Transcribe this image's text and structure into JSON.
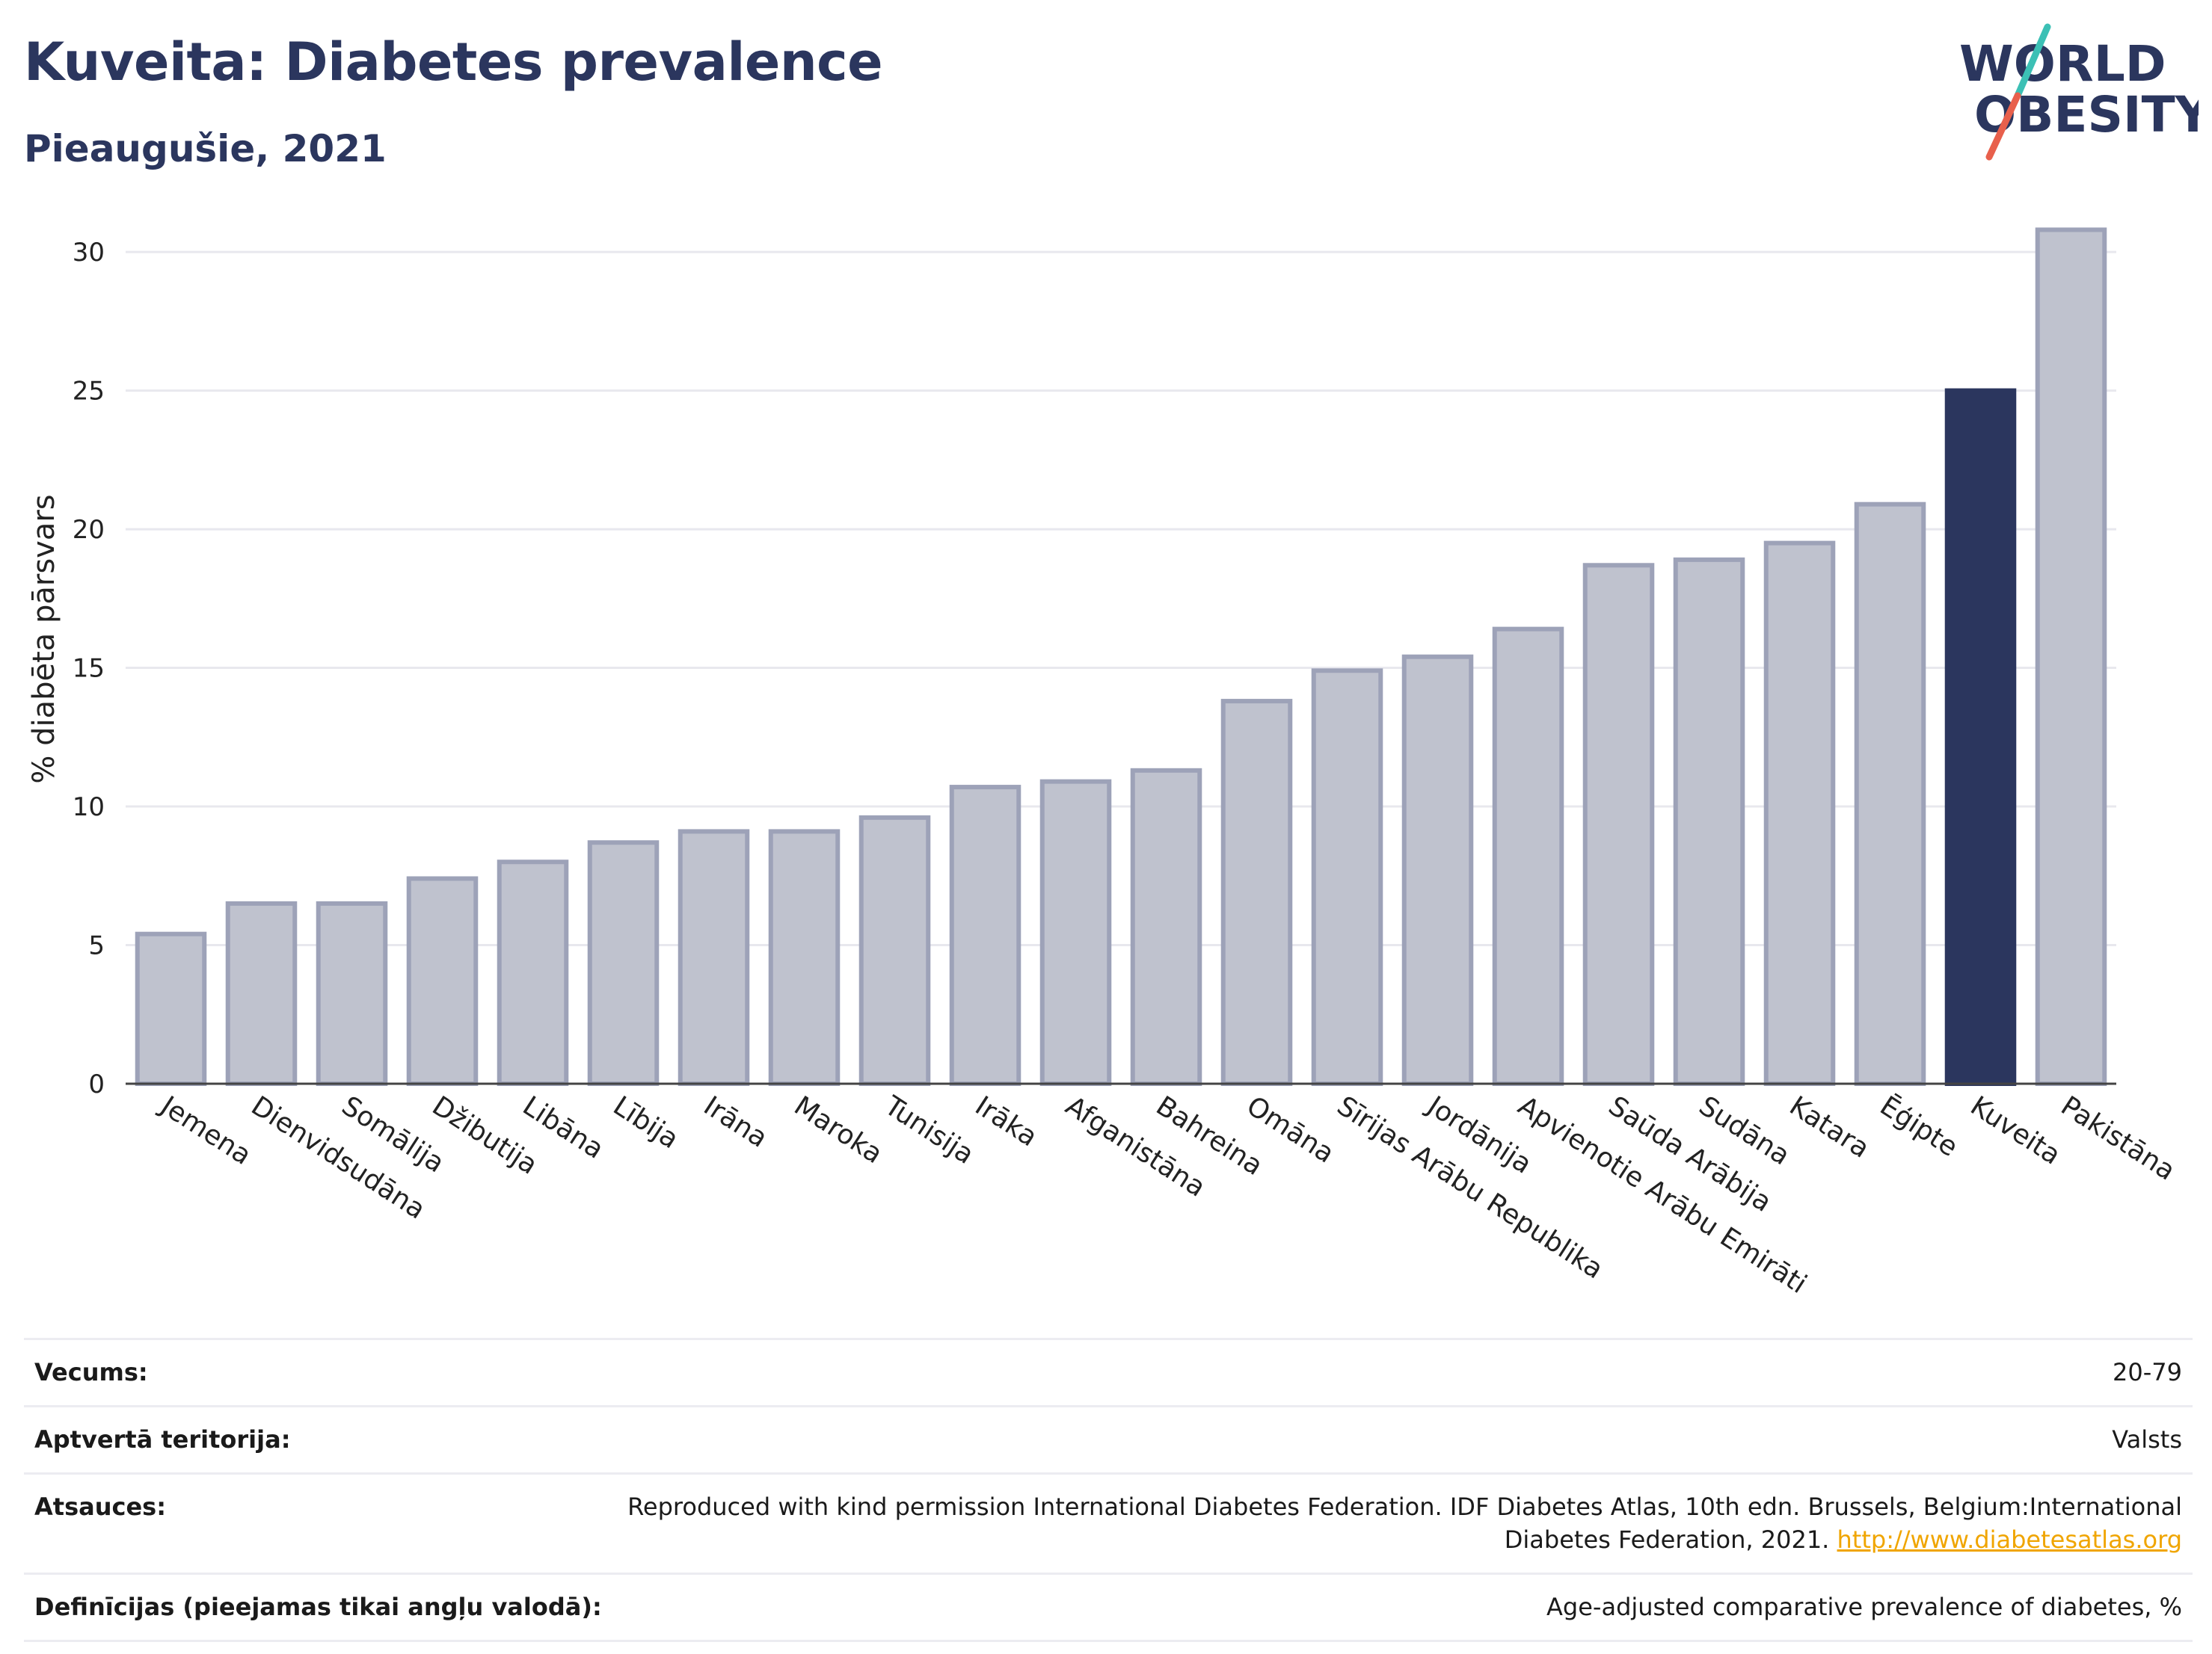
{
  "header": {
    "title": "Kuveita: Diabetes prevalence",
    "subtitle": "Pieaugušie, 2021"
  },
  "logo": {
    "line1": "WORLD",
    "line2": "OBESITY",
    "accent_colors": [
      "#3cc0b5",
      "#e8604c"
    ],
    "text_color": "#2b365e"
  },
  "chart_data": {
    "type": "bar",
    "ylabel": "% diabēta pārsvars",
    "ylim": [
      0,
      31
    ],
    "yticks": [
      0,
      5,
      10,
      15,
      20,
      25,
      30
    ],
    "grid": true,
    "highlight_category": "Kuveita",
    "colors": {
      "bar": "#bfc2ce",
      "bar_edge": "#9da2b8",
      "highlight": "#2b365e",
      "grid": "#e8e8ee",
      "axis": "#444444"
    },
    "categories": [
      "Jemena",
      "Dienvidsudāna",
      "Somālija",
      "Džibutija",
      "Libāna",
      "Lībija",
      "Irāna",
      "Maroka",
      "Tunisija",
      "Irāka",
      "Afganistāna",
      "Bahreina",
      "Omāna",
      "Sīrijas Arābu Republika",
      "Jordānija",
      "Apvienotie Arābu Emirāti",
      "Saūda Arābija",
      "Sudāna",
      "Katara",
      "Ēģipte",
      "Kuveita",
      "Pakistāna"
    ],
    "values": [
      5.4,
      6.5,
      6.5,
      7.4,
      8.0,
      8.7,
      9.1,
      9.1,
      9.6,
      10.7,
      10.9,
      11.3,
      13.8,
      14.9,
      15.4,
      16.4,
      18.7,
      18.9,
      19.5,
      20.9,
      25.0,
      30.8
    ]
  },
  "meta": {
    "rows": [
      {
        "key": "Vecums:",
        "value": "20-79"
      },
      {
        "key": "Aptvertā teritorija:",
        "value": "Valsts"
      },
      {
        "key": "Atsauces:",
        "value": "Reproduced with kind permission International Diabetes Federation.  IDF Diabetes Atlas, 10th edn. Brussels, Belgium:International Diabetes Federation, 2021.",
        "link": "http://www.diabetesatlas.org"
      },
      {
        "key": "Definīcijas (pieejamas tikai angļu valodā):",
        "value": "Age-adjusted comparative prevalence of diabetes, %"
      }
    ]
  }
}
